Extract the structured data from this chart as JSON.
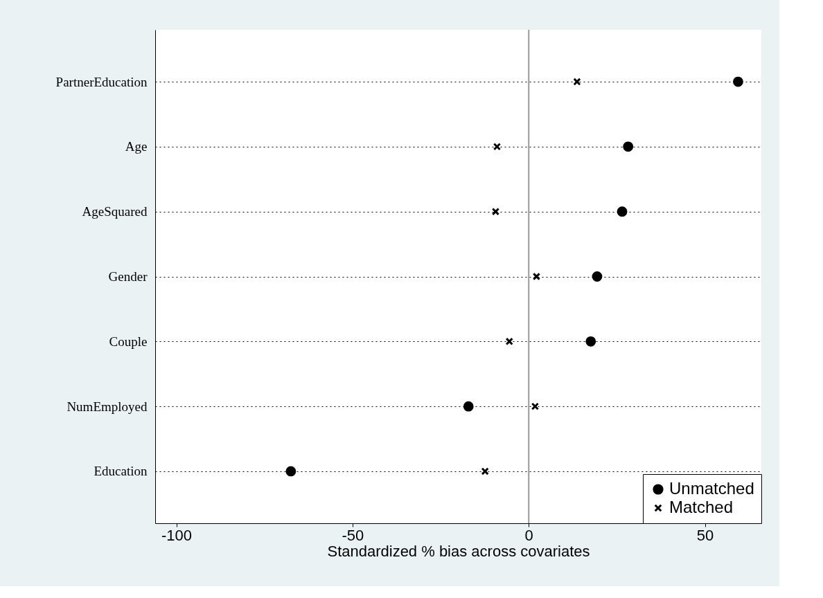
{
  "chart_data": {
    "type": "scatter",
    "orientation": "horizontal",
    "xlabel": "Standardized % bias across covariates",
    "categories": [
      "PartnerEducation",
      "Age",
      "AgeSquared",
      "Gender",
      "Couple",
      "NumEmployed",
      "Education"
    ],
    "series": [
      {
        "name": "Unmatched",
        "color": "#000000",
        "marker": "circle",
        "values": [
          59.4,
          28.2,
          26.5,
          19.4,
          17.6,
          -17.1,
          -67.5
        ]
      },
      {
        "name": "Matched",
        "color": "#000000",
        "marker": "cross",
        "values": [
          13.7,
          -9.0,
          -9.4,
          2.2,
          -5.5,
          1.8,
          -12.4
        ]
      }
    ],
    "xlim": [
      -106,
      66
    ],
    "xticks": [
      -100,
      -50,
      0,
      50
    ],
    "grid": "y",
    "legend": "bottom right",
    "ref_lines": [
      {
        "axis": "x",
        "value": 0,
        "color": "#999999"
      }
    ]
  }
}
